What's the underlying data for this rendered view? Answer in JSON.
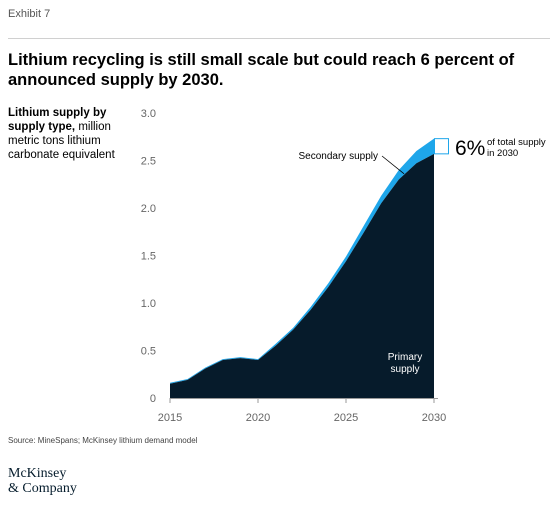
{
  "header": {
    "exhibit": "Exhibit 7",
    "title": "Lithium recycling is still small scale but could reach 6 percent of announced supply by 2030."
  },
  "ylabel": {
    "bold": "Lithium supply by supply type,",
    "normal": "million metric tons lithium carbonate equivalent"
  },
  "annotation": {
    "secondary_label": "Secondary supply",
    "primary_label_line1": "Primary",
    "primary_label_line2": "supply",
    "callout_value": "6%",
    "callout_text_line1": "of total supply",
    "callout_text_line2": "in 2030"
  },
  "footer": {
    "source": "Source: MineSpans; McKinsey lithium demand model",
    "logo_line1": "McKinsey",
    "logo_line2": "& Company"
  },
  "colors": {
    "primary": "#061b2b",
    "secondary": "#1ea6ea",
    "axis_text": "#666666"
  },
  "chart_data": {
    "type": "area",
    "stacked": true,
    "x": [
      2015,
      2016,
      2017,
      2018,
      2019,
      2020,
      2021,
      2022,
      2023,
      2024,
      2025,
      2026,
      2027,
      2028,
      2029,
      2030
    ],
    "series": [
      {
        "name": "Primary supply",
        "values": [
          0.15,
          0.19,
          0.31,
          0.4,
          0.42,
          0.4,
          0.55,
          0.72,
          0.93,
          1.17,
          1.44,
          1.74,
          2.05,
          2.3,
          2.47,
          2.57
        ]
      },
      {
        "name": "Secondary supply",
        "values": [
          0.01,
          0.01,
          0.01,
          0.01,
          0.01,
          0.01,
          0.02,
          0.02,
          0.03,
          0.04,
          0.05,
          0.07,
          0.08,
          0.1,
          0.13,
          0.16
        ]
      }
    ],
    "xticks": [
      "2015",
      "2020",
      "2025",
      "2030"
    ],
    "xtick_values": [
      2015,
      2020,
      2025,
      2030
    ],
    "yticks": [
      "0",
      "0.5",
      "1.0",
      "1.5",
      "2.0",
      "2.5",
      "3.0"
    ],
    "ytick_values": [
      0,
      0.5,
      1.0,
      1.5,
      2.0,
      2.5,
      3.0
    ],
    "ylim": [
      0,
      3.0
    ],
    "xlim": [
      2015,
      2030
    ],
    "grid": false,
    "legend": "inline labels"
  }
}
